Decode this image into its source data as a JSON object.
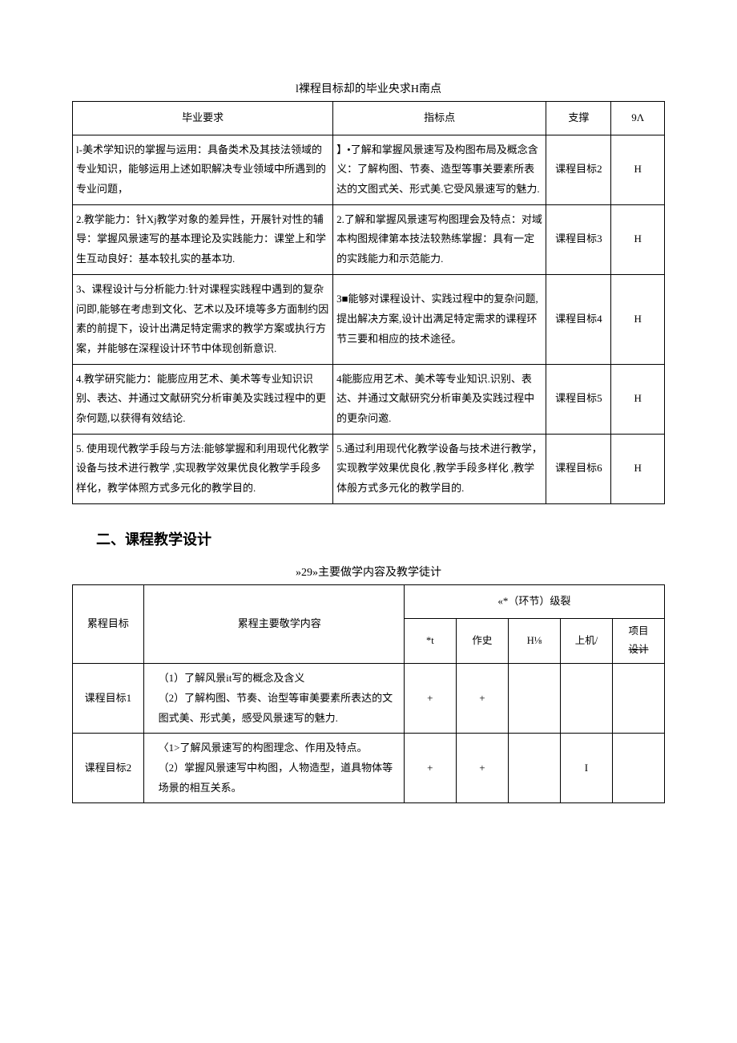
{
  "table1": {
    "title": "l裸程目标却的毕业央求H南点",
    "headers": {
      "req": "毕业要求",
      "ind": "指标点",
      "sup": "支撑",
      "lvl": "9Λ"
    },
    "rows": [
      {
        "req": "l-美术学知识的掌握与运用：具备类术及其技法领域的专业知识，能够运用上述如职解决专业领域中所遇到的专业问题，",
        "ind": "】•了解和掌握风景速写及构图布局及概念含义：了解构图、节奏、造型等事关要素所表达的文图式关、形式美.它受风景速写的魅力.",
        "sup": "课程目标2",
        "lvl": "H"
      },
      {
        "req": "2.教学能力：针Xj教学对象的差异性，开展针对性的辅导：掌握风景速写的基本理论及实践能力：课堂上和学生互动良好：基本较扎实的基本功.",
        "ind": "2.了解和掌握风景速写构图理会及特点：对域本构图规律第本技法较熟练掌握：具有一定的实践能力和示范能力.",
        "sup": "课程目标3",
        "lvl": "H"
      },
      {
        "req": "3、课程设计与分析能力:针对课程实践程中遇到的复杂问即,能够在考虑到文化、艺术以及环境等多方面制约因素的前提下，设计出满足特定需求的教学方案或执行方案，并能够在深程设计环节中体现创新意识.",
        "ind": "3■能够对课程设计、实践过程中的复杂问题,提出解决方案,设计出满足特定需求的课程环节三要和相应的技术途径。",
        "sup": "课程目标4",
        "lvl": "H"
      },
      {
        "req": "4.教学研究能力：能膨应用艺术、美术等专业知识识别、表达、并通过文献研究分析审美及实践过程中的更杂何题,以获得有效结论.",
        "ind": "4能膨应用艺术、美术等专业知识.识别、表达、并通过文献研究分析审美及实践过程中的更杂问邀.",
        "sup": "课程目标5",
        "lvl": "H"
      },
      {
        "req": "5. 使用现代教学手段与方法:能够掌握和利用现代化教学设备与技术进行教学 ,实现教学效果优良化教学手段多样化，教学体照方式多元化的教学目的.",
        "ind": "5.通过利用现代化教学设备与技术进行教学，实现教学效果优良化 ,教学手段多样化 ,教学体般方式多元化的教学目的.",
        "sup": "课程目标6",
        "lvl": "H"
      }
    ]
  },
  "section2_heading": "二、课程教学设计",
  "table2": {
    "title": "»29»主要做学内容及教学徒计",
    "headers": {
      "goal": "累程目标",
      "content": "累程主要敬学内容",
      "group": "«*（环节）级裂",
      "c1": "*t",
      "c2": "作史",
      "c3": "H⅛",
      "c4": "上机/",
      "c5": "项目设计"
    },
    "rows": [
      {
        "goal": "课程目标1",
        "content": "（1）了解风景it写的概念及含义\n（2）了解构图、节奏、诒型等审美要素所表达的文图式美、形式美，感受风景速写的魅力.",
        "c1": "+",
        "c2": "+",
        "c3": "",
        "c4": "",
        "c5": ""
      },
      {
        "goal": "课程目标2",
        "content": "〈1>了解风景速写的构图理念、作用及特点。\n（2）掌握风景速写中构图，人物造型，道具物体等场景的相互关系。",
        "c1": "+",
        "c2": "+",
        "c3": "",
        "c4": "I",
        "c5": ""
      }
    ]
  }
}
